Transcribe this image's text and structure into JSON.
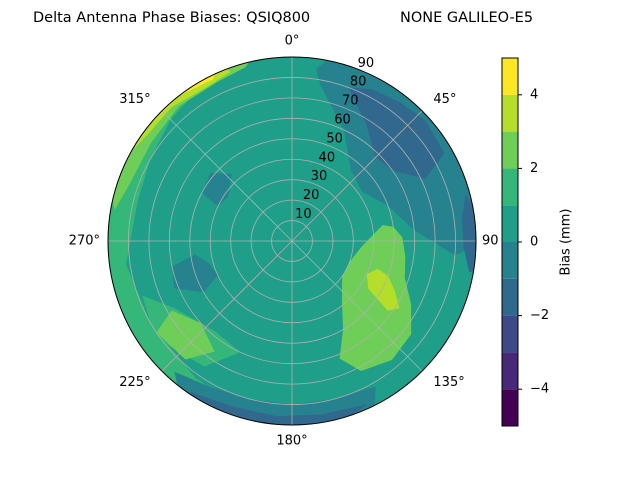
{
  "chart_data": {
    "type": "polar-contour",
    "title": "Delta Antenna Phase Biases: QSIQ800",
    "subtitle": "NONE GALILEO-E5",
    "colorbar_label": "Bias (mm)",
    "levels": [
      -5,
      -4,
      -3,
      -2,
      -1,
      0,
      1,
      2,
      3,
      4,
      5
    ],
    "colors": [
      "#440154",
      "#482878",
      "#3e4989",
      "#31688e",
      "#26828e",
      "#1f9e89",
      "#35b779",
      "#6ece58",
      "#b5de2b",
      "#fde725"
    ],
    "cbar_ticks": [
      {
        "value": -4,
        "label": "−4"
      },
      {
        "value": -2,
        "label": "−2"
      },
      0,
      2,
      4
    ],
    "rlim": [
      0,
      90
    ],
    "rticks": [
      10,
      20,
      30,
      40,
      50,
      60,
      70,
      80,
      90
    ],
    "theta_ticks": [
      {
        "value": 0,
        "label": "0°"
      },
      {
        "value": 45,
        "label": "45°"
      },
      90,
      {
        "value": 135,
        "label": "135°"
      },
      {
        "value": 180,
        "label": "180°"
      },
      {
        "value": 225,
        "label": "225°"
      },
      {
        "value": 270,
        "label": "270°"
      },
      {
        "value": 315,
        "label": "315°"
      }
    ],
    "grid": true,
    "base_level": 0,
    "contours": [
      {
        "level": 1,
        "az": [
          190,
          215,
          240,
          262,
          285,
          300,
          315,
          330,
          345,
          350,
          340,
          320,
          300,
          280,
          255,
          230,
          210,
          195
        ],
        "r": [
          90,
          82,
          80,
          82,
          78,
          80,
          84,
          88,
          90,
          95,
          95,
          95,
          95,
          95,
          95,
          95,
          95,
          95
        ]
      },
      {
        "level": 1,
        "az": [
          205,
          220,
          240,
          250,
          235,
          215
        ],
        "r": [
          60,
          58,
          66,
          78,
          82,
          75
        ]
      },
      {
        "level": 2,
        "az": [
          280,
          290,
          305,
          320,
          335,
          345,
          350,
          335,
          315,
          300,
          288
        ],
        "r": [
          88,
          84,
          84,
          86,
          86,
          88,
          95,
          95,
          95,
          95,
          95
        ]
      },
      {
        "level": 3,
        "az": [
          295,
          305,
          318,
          330,
          340,
          338,
          325,
          310,
          298
        ],
        "r": [
          92,
          88,
          88,
          86,
          88,
          95,
          95,
          95,
          95
        ]
      },
      {
        "level": 4,
        "az": [
          298,
          308,
          322,
          334,
          338,
          325,
          310
        ],
        "r": [
          95,
          90,
          90,
          88,
          95,
          95,
          95
        ]
      },
      {
        "level": 2,
        "az": [
          215,
          228,
          240,
          236,
          222
        ],
        "r": [
          66,
          60,
          68,
          80,
          78
        ]
      },
      {
        "level": 2,
        "az": [
          80,
          95,
          110,
          125,
          140,
          150,
          158,
          152,
          140,
          128,
          118,
          108,
          98,
          88,
          82
        ],
        "r": [
          45,
          34,
          30,
          30,
          38,
          50,
          62,
          72,
          76,
          74,
          66,
          58,
          56,
          54,
          50
        ]
      },
      {
        "level": 3,
        "az": [
          108,
          114,
          122,
          126,
          122,
          116,
          110
        ],
        "r": [
          44,
          40,
          44,
          58,
          62,
          56,
          50
        ]
      },
      {
        "level": -1,
        "az": [
          10,
          25,
          40,
          55,
          70,
          85,
          95,
          90,
          78,
          62,
          48,
          35,
          22,
          12,
          8
        ],
        "r": [
          78,
          60,
          45,
          42,
          50,
          60,
          80,
          95,
          95,
          95,
          95,
          95,
          95,
          92,
          85
        ]
      },
      {
        "level": -2,
        "az": [
          20,
          32,
          45,
          55,
          65,
          60,
          48,
          38,
          28
        ],
        "r": [
          80,
          68,
          58,
          60,
          72,
          86,
          88,
          86,
          84
        ]
      },
      {
        "level": -2,
        "az": [
          75,
          82,
          92,
          100,
          98,
          85
        ],
        "r": [
          88,
          84,
          84,
          88,
          95,
          95
        ]
      },
      {
        "level": -1,
        "az": [
          150,
          165,
          180,
          195,
          210,
          222,
          215,
          195,
          175,
          155
        ],
        "r": [
          82,
          80,
          80,
          80,
          82,
          86,
          95,
          95,
          95,
          95
        ]
      },
      {
        "level": -2,
        "az": [
          155,
          170,
          185,
          200,
          214,
          210,
          190,
          170
        ],
        "r": [
          88,
          86,
          86,
          86,
          89,
          95,
          95,
          95
        ]
      },
      {
        "level": -1,
        "az": [
          245,
          255,
          262,
          258,
          248,
          240
        ],
        "r": [
          40,
          42,
          48,
          60,
          62,
          50
        ]
      },
      {
        "level": -1,
        "az": [
          295,
          305,
          318,
          310,
          298
        ],
        "r": [
          40,
          38,
          44,
          52,
          50
        ]
      }
    ]
  }
}
